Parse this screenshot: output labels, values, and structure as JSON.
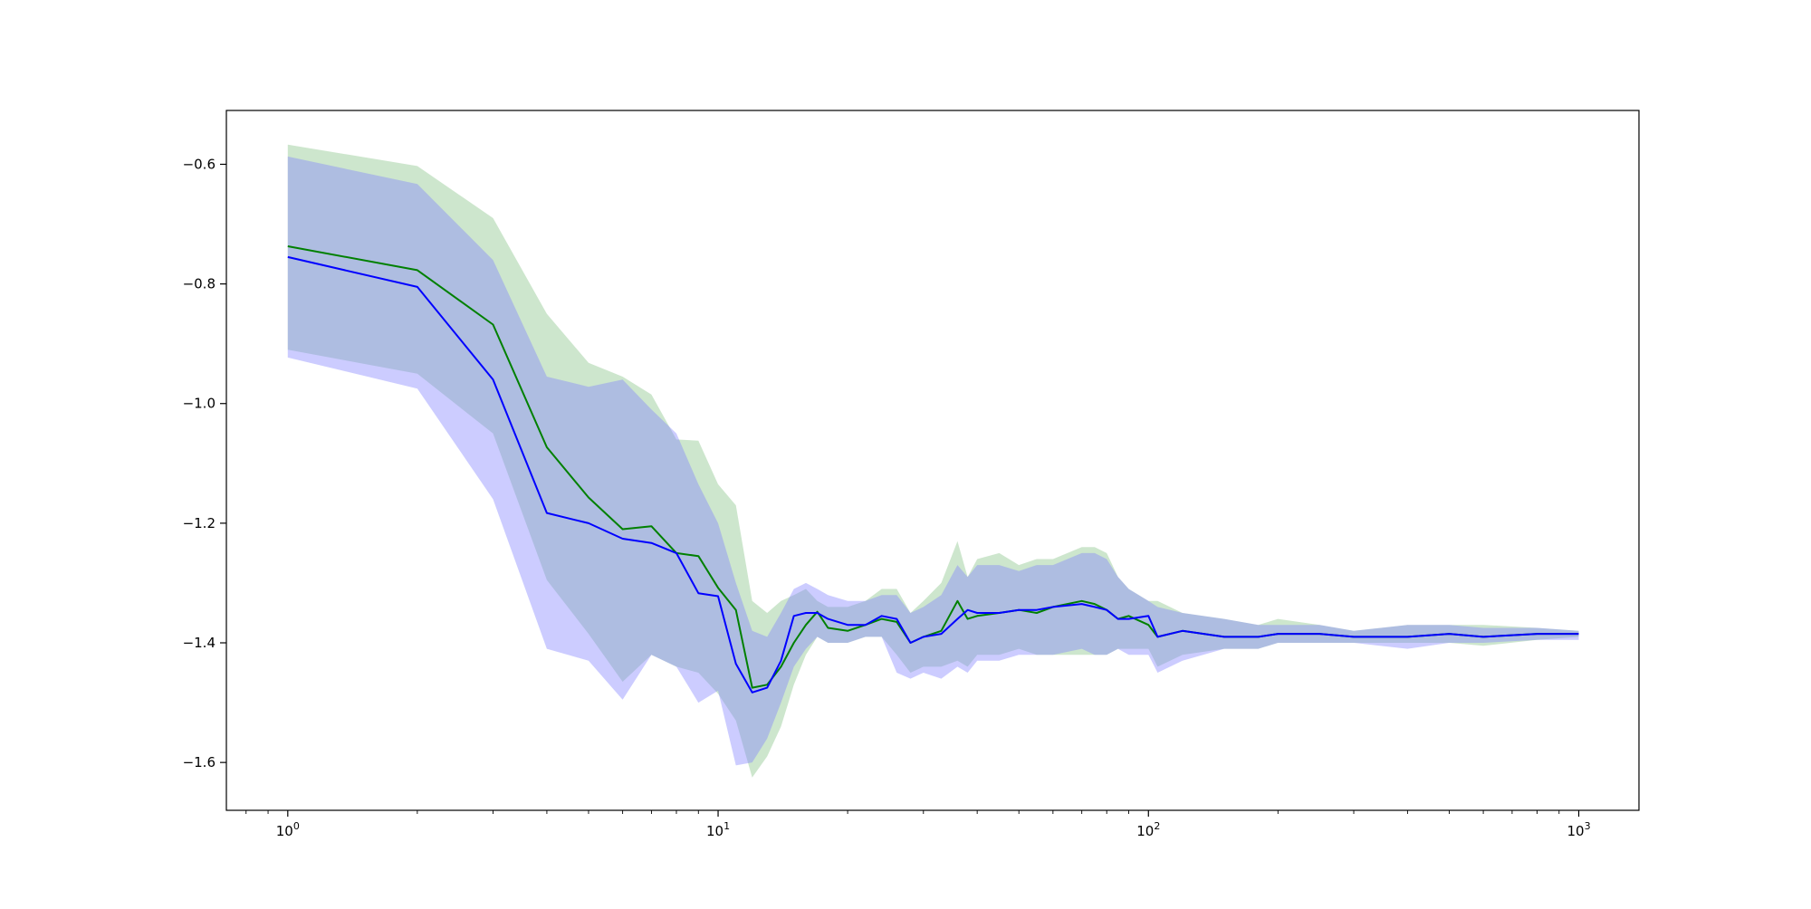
{
  "chart_data": {
    "type": "line",
    "title": "",
    "xlabel": "",
    "ylabel": "",
    "x_scale": "log",
    "xlim": [
      0.72,
      1380
    ],
    "ylim": [
      -1.68,
      -0.51
    ],
    "x_ticks": [
      {
        "value": 1,
        "base": "10",
        "exp": "0"
      },
      {
        "value": 10,
        "base": "10",
        "exp": "1"
      },
      {
        "value": 100,
        "base": "10",
        "exp": "2"
      },
      {
        "value": 1000,
        "base": "10",
        "exp": "3"
      }
    ],
    "y_ticks": [
      {
        "value": -0.6,
        "label": "−0.6"
      },
      {
        "value": -0.8,
        "label": "−0.8"
      },
      {
        "value": -1.0,
        "label": "−1.0"
      },
      {
        "value": -1.2,
        "label": "−1.2"
      },
      {
        "value": -1.4,
        "label": "−1.4"
      },
      {
        "value": -1.6,
        "label": "−1.6"
      }
    ],
    "grid": false,
    "legend": "none",
    "series": [
      {
        "color": "#008000",
        "band_color": "#4ca64c",
        "band_opacity": 0.28,
        "x": [
          1,
          2,
          3,
          4,
          5,
          6,
          7,
          8,
          9,
          10,
          11,
          12,
          13,
          14,
          15,
          16,
          17,
          18,
          20,
          22,
          24,
          26,
          28,
          30,
          33,
          36,
          38,
          40,
          45,
          50,
          55,
          60,
          70,
          75,
          80,
          85,
          90,
          100,
          105,
          120,
          150,
          180,
          200,
          250,
          300,
          400,
          500,
          600,
          800,
          1000
        ],
        "mean": [
          -0.737,
          -0.777,
          -0.868,
          -1.073,
          -1.157,
          -1.21,
          -1.205,
          -1.25,
          -1.255,
          -1.308,
          -1.345,
          -1.475,
          -1.47,
          -1.44,
          -1.4,
          -1.37,
          -1.348,
          -1.375,
          -1.38,
          -1.37,
          -1.36,
          -1.365,
          -1.4,
          -1.39,
          -1.38,
          -1.33,
          -1.36,
          -1.355,
          -1.35,
          -1.345,
          -1.35,
          -1.34,
          -1.33,
          -1.335,
          -1.345,
          -1.36,
          -1.355,
          -1.37,
          -1.39,
          -1.38,
          -1.39,
          -1.39,
          -1.385,
          -1.385,
          -1.39,
          -1.39,
          -1.385,
          -1.39,
          -1.385,
          -1.385
        ],
        "upper": [
          -0.567,
          -0.603,
          -0.69,
          -0.85,
          -0.932,
          -0.955,
          -0.985,
          -1.06,
          -1.062,
          -1.135,
          -1.17,
          -1.33,
          -1.35,
          -1.33,
          -1.32,
          -1.31,
          -1.33,
          -1.34,
          -1.34,
          -1.33,
          -1.31,
          -1.31,
          -1.35,
          -1.33,
          -1.3,
          -1.23,
          -1.29,
          -1.26,
          -1.25,
          -1.27,
          -1.26,
          -1.26,
          -1.24,
          -1.24,
          -1.25,
          -1.29,
          -1.31,
          -1.33,
          -1.33,
          -1.35,
          -1.36,
          -1.37,
          -1.36,
          -1.37,
          -1.38,
          -1.37,
          -1.37,
          -1.37,
          -1.375,
          -1.38
        ],
        "lower": [
          -0.91,
          -0.95,
          -1.05,
          -1.295,
          -1.385,
          -1.465,
          -1.42,
          -1.44,
          -1.45,
          -1.485,
          -1.53,
          -1.625,
          -1.59,
          -1.54,
          -1.47,
          -1.42,
          -1.39,
          -1.4,
          -1.4,
          -1.39,
          -1.39,
          -1.42,
          -1.45,
          -1.44,
          -1.44,
          -1.43,
          -1.44,
          -1.42,
          -1.42,
          -1.41,
          -1.42,
          -1.42,
          -1.42,
          -1.42,
          -1.42,
          -1.41,
          -1.41,
          -1.41,
          -1.44,
          -1.42,
          -1.41,
          -1.41,
          -1.4,
          -1.4,
          -1.4,
          -1.4,
          -1.4,
          -1.405,
          -1.395,
          -1.39
        ]
      },
      {
        "color": "#0000ff",
        "band_color": "#8080ff",
        "band_opacity": 0.4,
        "x": [
          1,
          2,
          3,
          4,
          5,
          6,
          7,
          8,
          9,
          10,
          11,
          12,
          13,
          14,
          15,
          16,
          17,
          18,
          20,
          22,
          24,
          26,
          28,
          30,
          33,
          36,
          38,
          40,
          45,
          50,
          55,
          60,
          70,
          75,
          80,
          85,
          90,
          100,
          105,
          120,
          150,
          180,
          200,
          250,
          300,
          400,
          500,
          600,
          800,
          1000
        ],
        "mean": [
          -0.755,
          -0.805,
          -0.96,
          -1.183,
          -1.2,
          -1.226,
          -1.233,
          -1.25,
          -1.317,
          -1.322,
          -1.435,
          -1.483,
          -1.475,
          -1.43,
          -1.355,
          -1.35,
          -1.35,
          -1.36,
          -1.37,
          -1.37,
          -1.355,
          -1.36,
          -1.4,
          -1.39,
          -1.385,
          -1.36,
          -1.345,
          -1.35,
          -1.35,
          -1.345,
          -1.345,
          -1.34,
          -1.335,
          -1.34,
          -1.345,
          -1.36,
          -1.36,
          -1.355,
          -1.39,
          -1.38,
          -1.39,
          -1.39,
          -1.385,
          -1.385,
          -1.39,
          -1.39,
          -1.385,
          -1.39,
          -1.385,
          -1.385
        ],
        "upper": [
          -0.587,
          -0.633,
          -0.76,
          -0.955,
          -0.972,
          -0.96,
          -1.01,
          -1.05,
          -1.135,
          -1.2,
          -1.3,
          -1.38,
          -1.39,
          -1.35,
          -1.31,
          -1.3,
          -1.31,
          -1.32,
          -1.33,
          -1.33,
          -1.32,
          -1.32,
          -1.35,
          -1.34,
          -1.32,
          -1.27,
          -1.29,
          -1.27,
          -1.27,
          -1.28,
          -1.27,
          -1.27,
          -1.25,
          -1.25,
          -1.26,
          -1.29,
          -1.31,
          -1.33,
          -1.34,
          -1.35,
          -1.36,
          -1.37,
          -1.37,
          -1.37,
          -1.38,
          -1.37,
          -1.37,
          -1.375,
          -1.375,
          -1.38
        ],
        "lower": [
          -0.923,
          -0.975,
          -1.16,
          -1.41,
          -1.43,
          -1.495,
          -1.42,
          -1.44,
          -1.5,
          -1.48,
          -1.605,
          -1.6,
          -1.56,
          -1.5,
          -1.44,
          -1.41,
          -1.39,
          -1.4,
          -1.4,
          -1.39,
          -1.39,
          -1.45,
          -1.46,
          -1.45,
          -1.46,
          -1.44,
          -1.45,
          -1.43,
          -1.43,
          -1.42,
          -1.42,
          -1.42,
          -1.41,
          -1.42,
          -1.42,
          -1.41,
          -1.42,
          -1.42,
          -1.45,
          -1.43,
          -1.41,
          -1.41,
          -1.4,
          -1.4,
          -1.4,
          -1.41,
          -1.4,
          -1.4,
          -1.395,
          -1.395
        ]
      }
    ]
  }
}
